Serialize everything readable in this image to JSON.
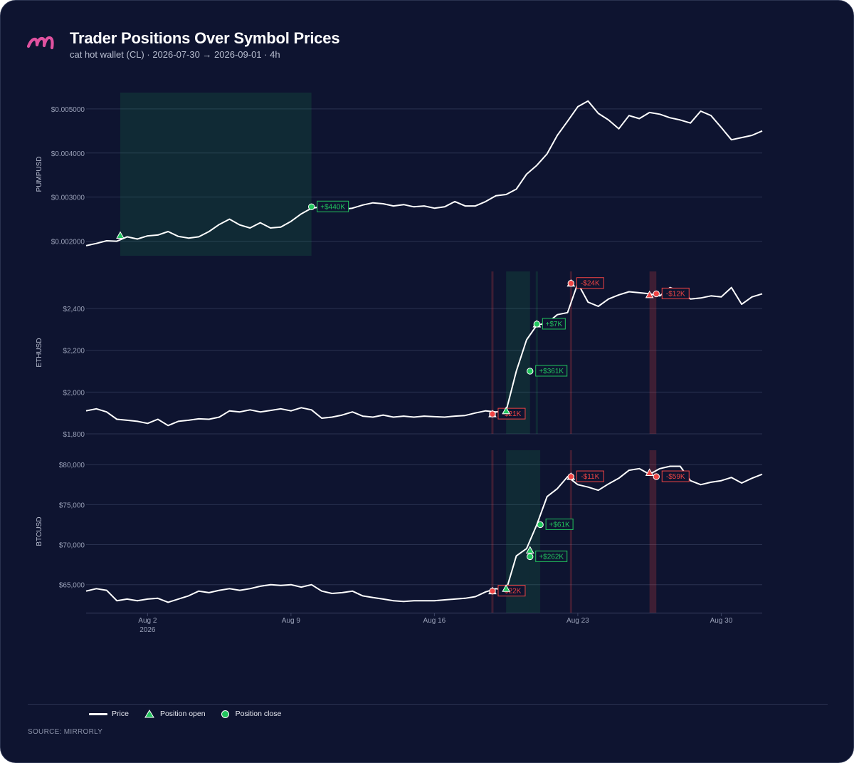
{
  "header": {
    "title": "Trader Positions Over Symbol Prices",
    "subtitle": "cat hot wallet (CL) · 2026-07-30 → 2026-09-01 · 4h"
  },
  "legend": {
    "price": "Price",
    "open": "Position open",
    "close": "Position close"
  },
  "footer": {
    "source": "SOURCE: MIRRORLY"
  },
  "colors": {
    "background": "#0e1430",
    "price": "#ffffff",
    "profit": "#22c55e",
    "loss": "#ef4444",
    "grid": "#2a3250",
    "brand": "#e052a0"
  },
  "chart_data": {
    "type": "line",
    "x_range": [
      "2026-07-30",
      "2026-09-01"
    ],
    "x_ticks": [
      {
        "date": "2026-08-02",
        "label": "Aug 2",
        "sublabel": "2026"
      },
      {
        "date": "2026-08-09",
        "label": "Aug 9",
        "sublabel": ""
      },
      {
        "date": "2026-08-16",
        "label": "Aug 16",
        "sublabel": ""
      },
      {
        "date": "2026-08-23",
        "label": "Aug 23",
        "sublabel": ""
      },
      {
        "date": "2026-08-30",
        "label": "Aug 30",
        "sublabel": ""
      }
    ],
    "grid": true,
    "legend_position": "bottom-left",
    "panels": [
      {
        "symbol": "PUMPUSD",
        "ylim": [
          0.00167,
          0.00537
        ],
        "y_ticks": [
          {
            "value": 0.002,
            "label": "$0.002000"
          },
          {
            "value": 0.003,
            "label": "$0.003000"
          },
          {
            "value": 0.004,
            "label": "$0.004000"
          },
          {
            "value": 0.005,
            "label": "$0.005000"
          }
        ],
        "price": [
          [
            "07-30 00:00",
            0.0019
          ],
          [
            "07-30 12:00",
            0.00195
          ],
          [
            "07-31 00:00",
            0.00201
          ],
          [
            "07-31 12:00",
            0.002
          ],
          [
            "08-01 00:00",
            0.0021
          ],
          [
            "08-01 12:00",
            0.00205
          ],
          [
            "08-02 00:00",
            0.00212
          ],
          [
            "08-02 12:00",
            0.00214
          ],
          [
            "08-03 00:00",
            0.00222
          ],
          [
            "08-03 12:00",
            0.00211
          ],
          [
            "08-04 00:00",
            0.00207
          ],
          [
            "08-04 12:00",
            0.0021
          ],
          [
            "08-05 00:00",
            0.00222
          ],
          [
            "08-05 12:00",
            0.00238
          ],
          [
            "08-06 00:00",
            0.0025
          ],
          [
            "08-06 12:00",
            0.00237
          ],
          [
            "08-07 00:00",
            0.0023
          ],
          [
            "08-07 12:00",
            0.00242
          ],
          [
            "08-08 00:00",
            0.0023
          ],
          [
            "08-08 12:00",
            0.00232
          ],
          [
            "08-09 00:00",
            0.00245
          ],
          [
            "08-09 12:00",
            0.00262
          ],
          [
            "08-10 00:00",
            0.00275
          ],
          [
            "08-10 12:00",
            0.00278
          ],
          [
            "08-11 00:00",
            0.00278
          ],
          [
            "08-11 12:00",
            0.00272
          ],
          [
            "08-12 00:00",
            0.00275
          ],
          [
            "08-12 12:00",
            0.00282
          ],
          [
            "08-13 00:00",
            0.00287
          ],
          [
            "08-13 12:00",
            0.00285
          ],
          [
            "08-14 00:00",
            0.0028
          ],
          [
            "08-14 12:00",
            0.00283
          ],
          [
            "08-15 00:00",
            0.00278
          ],
          [
            "08-15 12:00",
            0.0028
          ],
          [
            "08-16 00:00",
            0.00275
          ],
          [
            "08-16 12:00",
            0.00278
          ],
          [
            "08-17 00:00",
            0.0029
          ],
          [
            "08-17 12:00",
            0.0028
          ],
          [
            "08-18 00:00",
            0.0028
          ],
          [
            "08-18 12:00",
            0.0029
          ],
          [
            "08-19 00:00",
            0.00303
          ],
          [
            "08-19 12:00",
            0.00306
          ],
          [
            "08-20 00:00",
            0.00318
          ],
          [
            "08-20 12:00",
            0.00352
          ],
          [
            "08-21 00:00",
            0.00372
          ],
          [
            "08-21 12:00",
            0.00398
          ],
          [
            "08-22 00:00",
            0.0044
          ],
          [
            "08-22 12:00",
            0.00472
          ],
          [
            "08-23 00:00",
            0.00505
          ],
          [
            "08-23 12:00",
            0.00518
          ],
          [
            "08-24 00:00",
            0.0049
          ],
          [
            "08-24 12:00",
            0.00475
          ],
          [
            "08-25 00:00",
            0.00455
          ],
          [
            "08-25 12:00",
            0.00485
          ],
          [
            "08-26 00:00",
            0.00478
          ],
          [
            "08-26 12:00",
            0.00492
          ],
          [
            "08-27 00:00",
            0.00488
          ],
          [
            "08-27 12:00",
            0.0048
          ],
          [
            "08-28 00:00",
            0.00475
          ],
          [
            "08-28 12:00",
            0.00468
          ],
          [
            "08-29 00:00",
            0.00495
          ],
          [
            "08-29 12:00",
            0.00485
          ],
          [
            "08-30 00:00",
            0.00458
          ],
          [
            "08-30 12:00",
            0.0043
          ],
          [
            "08-31 00:00",
            0.00435
          ],
          [
            "08-31 12:00",
            0.0044
          ],
          [
            "09-01 00:00",
            0.0045
          ]
        ],
        "positions": [
          {
            "open": "07-31 16:00",
            "close": "08-10 00:00",
            "open_price": 0.00213,
            "close_price": 0.00278,
            "pnl_label": "+$440K",
            "result": "profit"
          }
        ]
      },
      {
        "symbol": "ETHUSD",
        "ylim": [
          1800,
          2577
        ],
        "y_ticks": [
          {
            "value": 1800,
            "label": "$1,800"
          },
          {
            "value": 2000,
            "label": "$2,000"
          },
          {
            "value": 2200,
            "label": "$2,200"
          },
          {
            "value": 2400,
            "label": "$2,400"
          }
        ],
        "price": [
          [
            "07-30 00:00",
            1910
          ],
          [
            "07-30 12:00",
            1920
          ],
          [
            "07-31 00:00",
            1905
          ],
          [
            "07-31 12:00",
            1870
          ],
          [
            "08-01 00:00",
            1865
          ],
          [
            "08-01 12:00",
            1860
          ],
          [
            "08-02 00:00",
            1850
          ],
          [
            "08-02 12:00",
            1870
          ],
          [
            "08-03 00:00",
            1840
          ],
          [
            "08-03 12:00",
            1860
          ],
          [
            "08-04 00:00",
            1865
          ],
          [
            "08-04 12:00",
            1872
          ],
          [
            "08-05 00:00",
            1870
          ],
          [
            "08-05 12:00",
            1880
          ],
          [
            "08-06 00:00",
            1910
          ],
          [
            "08-06 12:00",
            1905
          ],
          [
            "08-07 00:00",
            1915
          ],
          [
            "08-07 12:00",
            1905
          ],
          [
            "08-08 00:00",
            1912
          ],
          [
            "08-08 12:00",
            1920
          ],
          [
            "08-09 00:00",
            1910
          ],
          [
            "08-09 12:00",
            1925
          ],
          [
            "08-10 00:00",
            1915
          ],
          [
            "08-10 12:00",
            1875
          ],
          [
            "08-11 00:00",
            1880
          ],
          [
            "08-11 12:00",
            1890
          ],
          [
            "08-12 00:00",
            1905
          ],
          [
            "08-12 12:00",
            1885
          ],
          [
            "08-13 00:00",
            1880
          ],
          [
            "08-13 12:00",
            1890
          ],
          [
            "08-14 00:00",
            1880
          ],
          [
            "08-14 12:00",
            1885
          ],
          [
            "08-15 00:00",
            1880
          ],
          [
            "08-15 12:00",
            1885
          ],
          [
            "08-16 00:00",
            1882
          ],
          [
            "08-16 12:00",
            1880
          ],
          [
            "08-17 00:00",
            1885
          ],
          [
            "08-17 12:00",
            1888
          ],
          [
            "08-18 00:00",
            1900
          ],
          [
            "08-18 12:00",
            1910
          ],
          [
            "08-19 00:00",
            1905
          ],
          [
            "08-19 12:00",
            1910
          ],
          [
            "08-20 00:00",
            2100
          ],
          [
            "08-20 12:00",
            2250
          ],
          [
            "08-21 00:00",
            2320
          ],
          [
            "08-21 12:00",
            2330
          ],
          [
            "08-22 00:00",
            2370
          ],
          [
            "08-22 12:00",
            2380
          ],
          [
            "08-23 00:00",
            2520
          ],
          [
            "08-23 12:00",
            2430
          ],
          [
            "08-24 00:00",
            2410
          ],
          [
            "08-24 12:00",
            2445
          ],
          [
            "08-25 00:00",
            2465
          ],
          [
            "08-25 12:00",
            2480
          ],
          [
            "08-26 00:00",
            2475
          ],
          [
            "08-26 12:00",
            2470
          ],
          [
            "08-27 00:00",
            2460
          ],
          [
            "08-27 12:00",
            2500
          ],
          [
            "08-28 00:00",
            2480
          ],
          [
            "08-28 12:00",
            2445
          ],
          [
            "08-29 00:00",
            2450
          ],
          [
            "08-29 12:00",
            2460
          ],
          [
            "08-30 00:00",
            2455
          ],
          [
            "08-30 12:00",
            2500
          ],
          [
            "08-31 00:00",
            2420
          ],
          [
            "08-31 12:00",
            2455
          ],
          [
            "09-01 00:00",
            2470
          ]
        ],
        "positions": [
          {
            "open": "08-18 20:00",
            "close": "08-18 20:00",
            "open_price": 1895,
            "close_price": 1895,
            "pnl_label": "-$21K",
            "result": "loss"
          },
          {
            "open": "08-19 12:00",
            "close": "08-20 16:00",
            "open_price": 1910,
            "close_price": 2100,
            "pnl_label": "+$361K",
            "result": "profit"
          },
          {
            "open": "08-21 00:00",
            "close": "08-21 00:00",
            "open_price": 2325,
            "close_price": 2325,
            "pnl_label": "+$7K",
            "result": "profit"
          },
          {
            "open": "08-22 16:00",
            "close": "08-22 16:00",
            "open_price": 2520,
            "close_price": 2520,
            "pnl_label": "-$24K",
            "result": "loss"
          },
          {
            "open": "08-26 12:00",
            "close": "08-26 20:00",
            "open_price": 2465,
            "close_price": 2470,
            "pnl_label": "-$12K",
            "result": "loss"
          }
        ]
      },
      {
        "symbol": "BTCUSD",
        "ylim": [
          61500,
          81800
        ],
        "y_ticks": [
          {
            "value": 65000,
            "label": "$65,000"
          },
          {
            "value": 70000,
            "label": "$70,000"
          },
          {
            "value": 75000,
            "label": "$75,000"
          },
          {
            "value": 80000,
            "label": "$80,000"
          }
        ],
        "price": [
          [
            "07-30 00:00",
            64200
          ],
          [
            "07-30 12:00",
            64500
          ],
          [
            "07-31 00:00",
            64300
          ],
          [
            "07-31 12:00",
            63000
          ],
          [
            "08-01 00:00",
            63200
          ],
          [
            "08-01 12:00",
            63000
          ],
          [
            "08-02 00:00",
            63200
          ],
          [
            "08-02 12:00",
            63300
          ],
          [
            "08-03 00:00",
            62800
          ],
          [
            "08-03 12:00",
            63200
          ],
          [
            "08-04 00:00",
            63600
          ],
          [
            "08-04 12:00",
            64200
          ],
          [
            "08-05 00:00",
            64000
          ],
          [
            "08-05 12:00",
            64300
          ],
          [
            "08-06 00:00",
            64500
          ],
          [
            "08-06 12:00",
            64300
          ],
          [
            "08-07 00:00",
            64500
          ],
          [
            "08-07 12:00",
            64800
          ],
          [
            "08-08 00:00",
            65000
          ],
          [
            "08-08 12:00",
            64900
          ],
          [
            "08-09 00:00",
            65000
          ],
          [
            "08-09 12:00",
            64700
          ],
          [
            "08-10 00:00",
            65000
          ],
          [
            "08-10 12:00",
            64200
          ],
          [
            "08-11 00:00",
            63900
          ],
          [
            "08-11 12:00",
            64000
          ],
          [
            "08-12 00:00",
            64200
          ],
          [
            "08-12 12:00",
            63600
          ],
          [
            "08-13 00:00",
            63400
          ],
          [
            "08-13 12:00",
            63200
          ],
          [
            "08-14 00:00",
            63000
          ],
          [
            "08-14 12:00",
            62900
          ],
          [
            "08-15 00:00",
            63000
          ],
          [
            "08-15 12:00",
            63000
          ],
          [
            "08-16 00:00",
            63000
          ],
          [
            "08-16 12:00",
            63100
          ],
          [
            "08-17 00:00",
            63200
          ],
          [
            "08-17 12:00",
            63300
          ],
          [
            "08-18 00:00",
            63500
          ],
          [
            "08-18 12:00",
            64100
          ],
          [
            "08-19 00:00",
            64500
          ],
          [
            "08-19 12:00",
            64300
          ],
          [
            "08-20 00:00",
            68600
          ],
          [
            "08-20 12:00",
            69500
          ],
          [
            "08-21 00:00",
            72500
          ],
          [
            "08-21 12:00",
            76000
          ],
          [
            "08-22 00:00",
            77000
          ],
          [
            "08-22 12:00",
            78500
          ],
          [
            "08-23 00:00",
            77500
          ],
          [
            "08-23 12:00",
            77200
          ],
          [
            "08-24 00:00",
            76800
          ],
          [
            "08-24 12:00",
            77600
          ],
          [
            "08-25 00:00",
            78300
          ],
          [
            "08-25 12:00",
            79300
          ],
          [
            "08-26 00:00",
            79500
          ],
          [
            "08-26 12:00",
            78800
          ],
          [
            "08-27 00:00",
            79500
          ],
          [
            "08-27 12:00",
            79800
          ],
          [
            "08-28 00:00",
            79800
          ],
          [
            "08-28 12:00",
            78000
          ],
          [
            "08-29 00:00",
            77500
          ],
          [
            "08-29 12:00",
            77800
          ],
          [
            "08-30 00:00",
            78000
          ],
          [
            "08-30 12:00",
            78400
          ],
          [
            "08-31 00:00",
            77700
          ],
          [
            "08-31 12:00",
            78300
          ],
          [
            "09-01 00:00",
            78800
          ]
        ],
        "positions": [
          {
            "open": "08-18 20:00",
            "close": "08-18 20:00",
            "open_price": 64200,
            "close_price": 64200,
            "pnl_label": "-$22K",
            "result": "loss"
          },
          {
            "open": "08-19 12:00",
            "close": "08-20 16:00",
            "open_price": 64500,
            "close_price": 68500,
            "pnl_label": "+$262K",
            "result": "profit"
          },
          {
            "open": "08-20 16:00",
            "close": "08-21 04:00",
            "open_price": 69300,
            "close_price": 72500,
            "pnl_label": "+$61K",
            "result": "profit"
          },
          {
            "open": "08-22 16:00",
            "close": "08-22 16:00",
            "open_price": 78500,
            "close_price": 78500,
            "pnl_label": "-$11K",
            "result": "loss"
          },
          {
            "open": "08-26 12:00",
            "close": "08-26 20:00",
            "open_price": 79000,
            "close_price": 78500,
            "pnl_label": "-$59K",
            "result": "loss"
          }
        ]
      }
    ]
  }
}
